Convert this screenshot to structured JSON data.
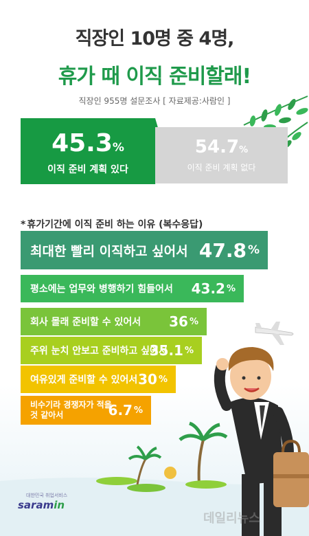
{
  "header": {
    "title_line1": "직장인 10명 중 4명,",
    "title_line2": "휴가 때 이직 준비할래!",
    "subtitle": "직장인 955명 설문조사 [ 자료제공:사람인 ]"
  },
  "summary": {
    "yes": {
      "value": "45.3",
      "unit": "%",
      "label": "이직 준비 계획 있다"
    },
    "no": {
      "value": "54.7",
      "unit": "%",
      "label": "이직 준비 계획 없다"
    }
  },
  "colors": {
    "title_green": "#1f9a4b",
    "yes_green": "#179a43",
    "no_gray": "#d5d5d5",
    "bars": [
      "#3a9a72",
      "#3ab85a",
      "#7ac43a",
      "#a8cf1f",
      "#f2c300",
      "#f5a200"
    ]
  },
  "chart_data": {
    "type": "bar",
    "title": "휴가기간에 이직 준비 하는 이유 (복수응답)",
    "unit": "%",
    "categories": [
      "최대한 빨리 이직하고 싶어서",
      "평소에는 업무와 병행하기 힘들어서",
      "회사 몰래 준비할 수 있어서",
      "주위 눈치 안보고 준비하고 싶어서",
      "여유있게 준비할 수 있어서",
      "비수기라 경쟁자가 적을 것 같아서"
    ],
    "values": [
      47.8,
      43.2,
      36,
      35.1,
      30,
      6.7
    ],
    "value_labels": [
      "47.8",
      "43.2",
      "36",
      "35.1",
      "30",
      "6.7"
    ]
  },
  "section": {
    "star": "*"
  },
  "logo": {
    "tagline": "대한민국 취업서비스",
    "name_main": "saram",
    "name_accent": "in"
  },
  "watermark": "데일리뉴스"
}
